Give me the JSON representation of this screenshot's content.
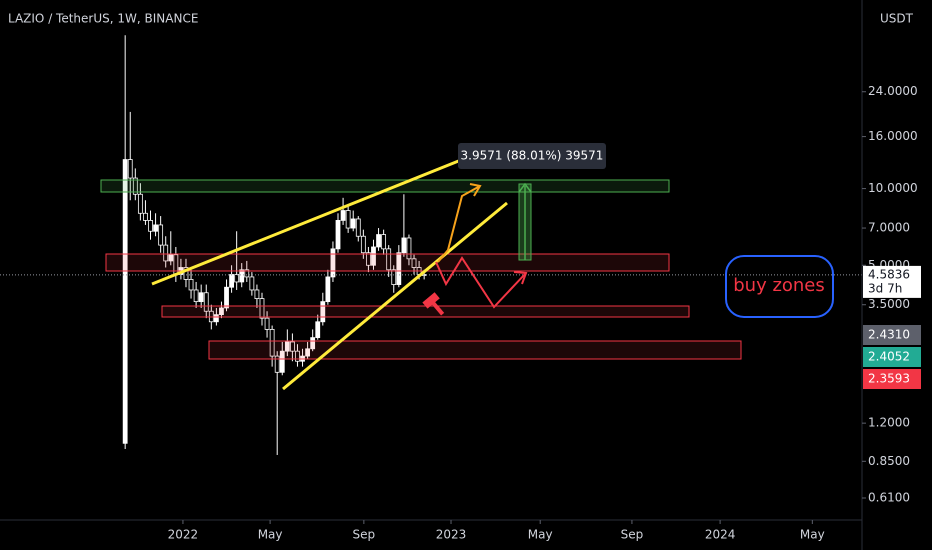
{
  "chart_data": {
    "type": "candlestick",
    "title": "LAZIO / TetherUS, 1W, BINANCE",
    "currency": "USDT",
    "log_scale": true,
    "up_color": "#ffffff",
    "down_color": "#000000",
    "xlim": [
      -24.7,
      145.4
    ],
    "xticks": [
      {
        "value": 11.4,
        "label": "2022"
      },
      {
        "value": 28.6,
        "label": "May"
      },
      {
        "value": 47.1,
        "label": "Sep"
      },
      {
        "value": 64.3,
        "label": "2023"
      },
      {
        "value": 81.9,
        "label": "May"
      },
      {
        "value": 100,
        "label": "Sep"
      },
      {
        "value": 117.4,
        "label": "2024"
      },
      {
        "value": 135.6,
        "label": "May"
      }
    ],
    "ylim": [
      0.5,
      55
    ],
    "yticks": [
      {
        "value": 24,
        "label": "24.0000"
      },
      {
        "value": 16,
        "label": "16.0000"
      },
      {
        "value": 10,
        "label": "10.0000"
      },
      {
        "value": 7,
        "label": "7.0000"
      },
      {
        "value": 5,
        "label": "5.0000"
      },
      {
        "value": 3.5,
        "label": "3.5000"
      },
      {
        "value": 1.2,
        "label": "1.2000"
      },
      {
        "value": 0.85,
        "label": "0.8500"
      },
      {
        "value": 0.61,
        "label": "0.6100"
      }
    ],
    "open": [
      1.0,
      13,
      11,
      9.5,
      8,
      7.5,
      6.8,
      7.2,
      6,
      5.2,
      5.5,
      4.6,
      4.9,
      4.4,
      4.0,
      3.6,
      3.9,
      3.3,
      3.0,
      3.2,
      3.4,
      4.1,
      4.6,
      4.3,
      4.8,
      4.5,
      4.0,
      3.7,
      3.1,
      2.8,
      2.2,
      1.9,
      2.3,
      2.5,
      2.3,
      2.1,
      2.2,
      2.35,
      2.6,
      3.0,
      3.6,
      4.5,
      5.8,
      7.5,
      8.2,
      7.0,
      7.6,
      6.5,
      5.6,
      5.0,
      5.9,
      6.6,
      5.8,
      4.8,
      4.2,
      5.6,
      6.4,
      5.3,
      4.9,
      4.6
    ],
    "high": [
      40,
      20,
      12,
      10.5,
      9,
      8.2,
      8,
      7.8,
      6.5,
      6.8,
      5.9,
      5.3,
      5.3,
      4.8,
      4.3,
      4.2,
      4.2,
      3.5,
      3.4,
      3.6,
      4.4,
      5.0,
      6.8,
      5.1,
      5.2,
      4.7,
      4.2,
      3.9,
      3.3,
      2.9,
      2.3,
      2.5,
      2.8,
      2.7,
      2.45,
      2.35,
      2.5,
      2.8,
      3.2,
      3.9,
      4.8,
      6.2,
      8.0,
      9.2,
      8.6,
      8.2,
      7.8,
      6.9,
      5.9,
      6.3,
      7.0,
      6.9,
      6.0,
      5.0,
      6.0,
      9.5,
      6.6,
      5.5,
      5.2,
      4.8
    ],
    "low": [
      0.95,
      9,
      9,
      7.5,
      7.2,
      6.3,
      6.5,
      5.6,
      4.9,
      5.0,
      4.3,
      4.4,
      4.1,
      3.7,
      3.4,
      3.4,
      3.1,
      2.8,
      2.9,
      3.1,
      3.3,
      3.9,
      4.0,
      4.1,
      4.3,
      3.8,
      3.4,
      2.9,
      2.6,
      2.0,
      0.9,
      1.85,
      2.2,
      2.1,
      2.0,
      2.0,
      2.15,
      2.3,
      2.55,
      2.9,
      3.5,
      4.3,
      5.6,
      7.2,
      6.7,
      6.8,
      6.2,
      5.3,
      4.7,
      4.8,
      5.7,
      5.5,
      4.5,
      3.9,
      4.1,
      5.4,
      5.0,
      4.6,
      4.4,
      4.4
    ],
    "close": [
      13,
      11,
      9.5,
      8,
      7.5,
      6.8,
      7.2,
      6,
      5.2,
      5.5,
      4.6,
      4.9,
      4.4,
      4.0,
      3.6,
      3.9,
      3.3,
      3.0,
      3.2,
      3.4,
      4.1,
      4.6,
      4.3,
      4.8,
      4.5,
      4.0,
      3.7,
      3.1,
      2.8,
      2.2,
      1.9,
      2.3,
      2.5,
      2.3,
      2.1,
      2.2,
      2.35,
      2.6,
      3.0,
      3.6,
      4.5,
      5.8,
      7.5,
      8.2,
      7.0,
      7.6,
      6.5,
      5.6,
      5.0,
      5.9,
      6.6,
      5.8,
      4.8,
      4.2,
      5.6,
      6.4,
      5.3,
      4.9,
      4.6,
      4.5836
    ],
    "last_price_countdown": "3d 7h",
    "last_price_color": "#ffffff",
    "axis_labels": [
      {
        "value": 2.431,
        "label": "2.4310",
        "color": "#5d606b"
      },
      {
        "value": 2.4052,
        "label": "2.4052",
        "color": "#22ab94"
      },
      {
        "value": 2.3593,
        "label": "2.3593",
        "color": "#f23645"
      }
    ],
    "annotations": {
      "measure": "3.9571 (88.01%) 39571",
      "note": "buy zones"
    }
  }
}
